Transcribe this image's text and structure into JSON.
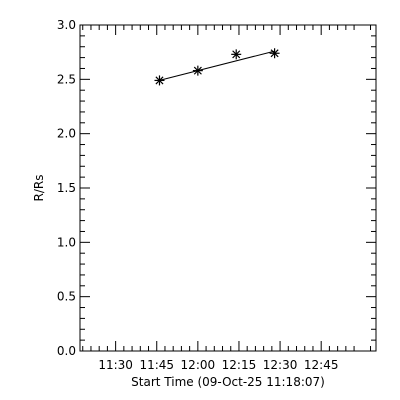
{
  "chart_data": {
    "type": "scatter",
    "xlabel": "Start Time (09-Oct-25 11:18:07)",
    "ylabel": "R/Rs",
    "xlim_minutes_of_day": [
      677,
      785
    ],
    "ylim": [
      0.0,
      3.0
    ],
    "x_ticks": [
      {
        "label": "11:30",
        "minutes_of_day": 690
      },
      {
        "label": "11:45",
        "minutes_of_day": 705
      },
      {
        "label": "12:00",
        "minutes_of_day": 720
      },
      {
        "label": "12:15",
        "minutes_of_day": 735
      },
      {
        "label": "12:30",
        "minutes_of_day": 750
      },
      {
        "label": "12:45",
        "minutes_of_day": 765
      }
    ],
    "y_ticks": [
      {
        "label": "0.0",
        "value": 0.0
      },
      {
        "label": "0.5",
        "value": 0.5
      },
      {
        "label": "1.0",
        "value": 1.0
      },
      {
        "label": "1.5",
        "value": 1.5
      },
      {
        "label": "2.0",
        "value": 2.0
      },
      {
        "label": "2.5",
        "value": 2.5
      },
      {
        "label": "3.0",
        "value": 3.0
      }
    ],
    "series": [
      {
        "marker": "asterisk",
        "x": [
          "11:46",
          "12:00",
          "12:14",
          "12:28"
        ],
        "x_minutes_of_day": [
          706,
          720,
          734,
          748
        ],
        "y": [
          2.49,
          2.58,
          2.73,
          2.74
        ]
      }
    ],
    "fit_line": {
      "x_minutes_of_day": [
        706,
        748
      ],
      "y": [
        2.49,
        2.76
      ]
    },
    "grid": false,
    "legend": "none"
  }
}
